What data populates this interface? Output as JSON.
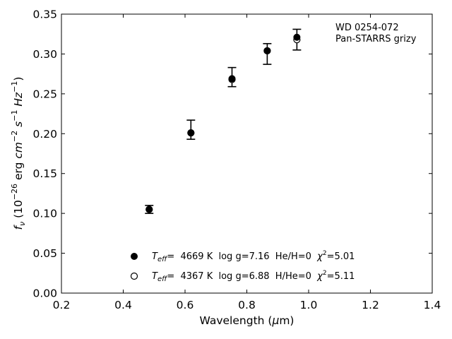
{
  "chart_data": {
    "type": "scatter",
    "annotation": [
      "WD 0254-072",
      "Pan-STARRS grizy"
    ],
    "xlabel": "Wavelength (μm)",
    "ylabel": "f_ν (10^-26 erg cm^-2 s^-1 Hz^-1)",
    "xlim": [
      0.2,
      1.4
    ],
    "ylim": [
      0.0,
      0.35
    ],
    "xticks": [
      "0.2",
      "0.4",
      "0.6",
      "0.8",
      "1.0",
      "1.2",
      "1.4"
    ],
    "yticks": [
      "0.00",
      "0.05",
      "0.10",
      "0.15",
      "0.20",
      "0.25",
      "0.30",
      "0.35"
    ],
    "grid": false,
    "observed": {
      "x": [
        0.484,
        0.619,
        0.752,
        0.866,
        0.962
      ],
      "y": [
        0.105,
        0.205,
        0.271,
        0.3,
        0.318
      ],
      "yerr": [
        0.005,
        0.012,
        0.012,
        0.013,
        0.013
      ]
    },
    "series": [
      {
        "name": "Teff= 4669 K log g=7.16 He/H=0 χ2=5.01",
        "marker": "filled-circle",
        "x": [
          0.484,
          0.619,
          0.752,
          0.866,
          0.962
        ],
        "y": [
          0.105,
          0.201,
          0.269,
          0.304,
          0.321
        ]
      },
      {
        "name": "Teff= 4367 K log g=6.88 H/He=0 χ2=5.11",
        "marker": "open-circle",
        "x": [
          0.484,
          0.619,
          0.752,
          0.866,
          0.962
        ],
        "y": [
          0.105,
          0.201,
          0.268,
          0.304,
          0.318
        ]
      }
    ],
    "legend": {
      "placement": "bottom-center",
      "entries": [
        {
          "marker": "filled-circle",
          "teff_label": "T",
          "teff_sub": "eff",
          "text": "=  4669 K  log g=7.16  He/H=0  ",
          "chi_sym": "χ",
          "chi_sup": "2",
          "chi_val": "=5.01"
        },
        {
          "marker": "open-circle",
          "teff_label": "T",
          "teff_sub": "eff",
          "text": "=  4367 K  log g=6.88  H/He=0  ",
          "chi_sym": "χ",
          "chi_sup": "2",
          "chi_val": "=5.11"
        }
      ]
    }
  }
}
